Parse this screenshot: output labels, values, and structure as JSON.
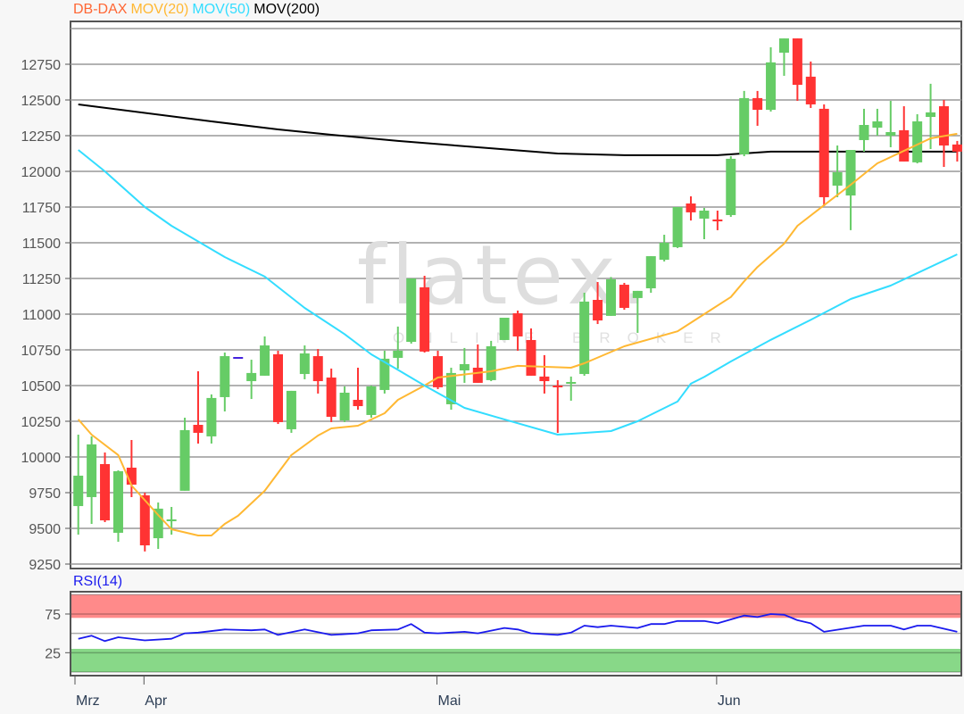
{
  "legend": {
    "instrument": "DB-DAX",
    "ma20": "MOV(20)",
    "ma50": "MOV(50)",
    "ma200": "MOV(200)"
  },
  "rsi_label": "RSI(14)",
  "watermark": {
    "logo": "flatex.",
    "tagline": "ONLINE BROKER"
  },
  "colors": {
    "up": "#66cc66",
    "down": "#ff3333",
    "unchanged": "#4422dd",
    "instrument": "#ff6633",
    "ma20": "#ffb833",
    "ma50": "#33ddff",
    "ma200": "#000000",
    "rsi": "#1a1aee",
    "overbought_band": "#ff8a8a",
    "oversold_band": "#88d888"
  },
  "chart_data": [
    {
      "type": "candlestick",
      "title": "DB-DAX",
      "ylim": [
        9250,
        13000
      ],
      "yticks": [
        12750,
        12500,
        12250,
        12000,
        11750,
        11500,
        11250,
        11000,
        10750,
        10500,
        10250,
        10000,
        9750,
        9500,
        9250
      ],
      "xticks": [
        {
          "label": "Mrz",
          "date": "03-25"
        },
        {
          "label": "Apr",
          "date": "04-01"
        },
        {
          "label": "Mai",
          "date": "05-01"
        },
        {
          "label": "Jun",
          "date": "06-01"
        }
      ],
      "grid": true,
      "ohlc_fields": [
        "date",
        "open",
        "high",
        "low",
        "close"
      ],
      "candles": [
        [
          "03-25",
          9656,
          10156,
          9456,
          9869
        ],
        [
          "03-26",
          9719,
          10144,
          9531,
          10088
        ],
        [
          "03-27",
          9950,
          10031,
          9544,
          9556
        ],
        [
          "03-30",
          9469,
          9906,
          9406,
          9900
        ],
        [
          "03-31",
          9925,
          10119,
          9719,
          9806
        ],
        [
          "04-01",
          9731,
          9750,
          9338,
          9381
        ],
        [
          "04-02",
          9431,
          9681,
          9356,
          9638
        ],
        [
          "04-03",
          9550,
          9650,
          9456,
          9563
        ],
        [
          "04-06",
          9763,
          10275,
          9763,
          10188
        ],
        [
          "04-07",
          10225,
          10600,
          10094,
          10169
        ],
        [
          "04-08",
          10144,
          10438,
          10094,
          10413
        ],
        [
          "04-09",
          10419,
          10731,
          10319,
          10706
        ],
        [
          "04-10",
          10700,
          10700,
          10700,
          10700
        ],
        [
          "04-13",
          10531,
          10681,
          10406,
          10588
        ],
        [
          "04-14",
          10569,
          10844,
          10569,
          10781
        ],
        [
          "04-15",
          10719,
          10744,
          10231,
          10244
        ],
        [
          "04-16",
          10194,
          10463,
          10169,
          10463
        ],
        [
          "04-17",
          10581,
          10781,
          10544,
          10725
        ],
        [
          "04-20",
          10706,
          10756,
          10444,
          10531
        ],
        [
          "04-21",
          10556,
          10619,
          10244,
          10281
        ],
        [
          "04-22",
          10256,
          10494,
          10244,
          10450
        ],
        [
          "04-23",
          10400,
          10625,
          10331,
          10356
        ],
        [
          "04-24",
          10294,
          10500,
          10275,
          10494
        ],
        [
          "04-27",
          10469,
          10744,
          10444,
          10688
        ],
        [
          "04-28",
          10694,
          10913,
          10619,
          10744
        ],
        [
          "04-29",
          10806,
          11250,
          10794,
          11250
        ],
        [
          "04-30",
          11188,
          11269,
          10731,
          10738
        ],
        [
          "05-01",
          10706,
          10744,
          10475,
          10488
        ],
        [
          "05-04",
          10369,
          10625,
          10331,
          10588
        ],
        [
          "05-05",
          10606,
          10763,
          10519,
          10650
        ],
        [
          "05-06",
          10625,
          10788,
          10519,
          10519
        ],
        [
          "05-07",
          10538,
          10813,
          10531,
          10775
        ],
        [
          "05-08",
          10819,
          10975,
          10819,
          10975
        ],
        [
          "05-11",
          11006,
          11025,
          10744,
          10844
        ],
        [
          "05-12",
          10819,
          10900,
          10569,
          10569
        ],
        [
          "05-13",
          10563,
          10713,
          10444,
          10531
        ],
        [
          "05-14",
          10500,
          10538,
          10169,
          10494
        ],
        [
          "05-15",
          10513,
          10563,
          10394,
          10525
        ],
        [
          "05-18",
          10581,
          11150,
          10569,
          11088
        ],
        [
          "05-19",
          11100,
          11225,
          10931,
          10956
        ],
        [
          "05-20",
          10988,
          11260,
          10988,
          11244
        ],
        [
          "05-21",
          11206,
          11219,
          11031,
          11044
        ],
        [
          "05-22",
          11113,
          11163,
          10869,
          11163
        ],
        [
          "05-25",
          11181,
          11406,
          11150,
          11406
        ],
        [
          "05-26",
          11381,
          11556,
          11369,
          11500
        ],
        [
          "05-27",
          11469,
          11750,
          11463,
          11750
        ],
        [
          "05-28",
          11775,
          11825,
          11656,
          11713
        ],
        [
          "05-29",
          11669,
          11744,
          11525,
          11725
        ],
        [
          "06-01",
          11663,
          11725,
          11588,
          11650
        ],
        [
          "06-02",
          11694,
          12106,
          11681,
          12088
        ],
        [
          "06-03",
          12119,
          12563,
          12106,
          12513
        ],
        [
          "06-04",
          12513,
          12563,
          12319,
          12431
        ],
        [
          "06-05",
          12431,
          12869,
          12419,
          12763
        ],
        [
          "06-08",
          12831,
          12931,
          12669,
          12931
        ],
        [
          "06-09",
          12931,
          12931,
          12494,
          12606
        ],
        [
          "06-10",
          12663,
          12769,
          12444,
          12469
        ],
        [
          "06-11",
          12438,
          12469,
          11756,
          11819
        ],
        [
          "06-12",
          11900,
          12181,
          11819,
          11994
        ],
        [
          "06-15",
          11831,
          12150,
          11588,
          12150
        ],
        [
          "06-16",
          12219,
          12438,
          12138,
          12325
        ],
        [
          "06-17",
          12306,
          12438,
          12250,
          12350
        ],
        [
          "06-18",
          12250,
          12494,
          12169,
          12275
        ],
        [
          "06-19",
          12288,
          12456,
          12069,
          12069
        ],
        [
          "06-22",
          12063,
          12400,
          12056,
          12350
        ],
        [
          "06-23",
          12381,
          12613,
          12156,
          12413
        ],
        [
          "06-24",
          12456,
          12500,
          12031,
          12181
        ],
        [
          "06-25",
          12188,
          12213,
          12069,
          12138
        ]
      ],
      "series": [
        {
          "name": "MOV(20)",
          "type": "line",
          "points": [
            [
              "03-25",
              10263
            ],
            [
              "03-26",
              10156
            ],
            [
              "03-30",
              10013
            ],
            [
              "03-31",
              9800
            ],
            [
              "04-02",
              9594
            ],
            [
              "04-03",
              9494
            ],
            [
              "04-07",
              9450
            ],
            [
              "04-08",
              9450
            ],
            [
              "04-09",
              9531
            ],
            [
              "04-10",
              9588
            ],
            [
              "04-14",
              9763
            ],
            [
              "04-16",
              10013
            ],
            [
              "04-20",
              10150
            ],
            [
              "04-21",
              10200
            ],
            [
              "04-23",
              10219
            ],
            [
              "04-27",
              10306
            ],
            [
              "04-28",
              10400
            ],
            [
              "04-30",
              10500
            ],
            [
              "05-01",
              10556
            ],
            [
              "05-07",
              10600
            ],
            [
              "05-11",
              10638
            ],
            [
              "05-15",
              10625
            ],
            [
              "05-18",
              10656
            ],
            [
              "05-21",
              10775
            ],
            [
              "05-27",
              10880
            ],
            [
              "05-29",
              11000
            ],
            [
              "06-02",
              11120
            ],
            [
              "06-03",
              11230
            ],
            [
              "06-04",
              11330
            ],
            [
              "06-08",
              11494
            ],
            [
              "06-09",
              11619
            ],
            [
              "06-11",
              11763
            ],
            [
              "06-15",
              11906
            ],
            [
              "06-17",
              12056
            ],
            [
              "06-23",
              12231
            ],
            [
              "06-25",
              12263
            ]
          ]
        },
        {
          "name": "MOV(50)",
          "type": "line",
          "points": [
            [
              "03-25",
              12150
            ],
            [
              "03-26",
              12075
            ],
            [
              "03-27",
              12000
            ],
            [
              "04-01",
              11750
            ],
            [
              "04-03",
              11619
            ],
            [
              "04-09",
              11400
            ],
            [
              "04-14",
              11263
            ],
            [
              "04-17",
              11044
            ],
            [
              "04-22",
              10860
            ],
            [
              "04-24",
              10719
            ],
            [
              "04-28",
              10610
            ],
            [
              "04-30",
              10500
            ],
            [
              "05-05",
              10344
            ],
            [
              "05-08",
              10263
            ],
            [
              "05-14",
              10156
            ],
            [
              "05-20",
              10181
            ],
            [
              "05-22",
              10250
            ],
            [
              "05-27",
              10388
            ],
            [
              "05-28",
              10513
            ],
            [
              "05-29",
              10560
            ],
            [
              "06-02",
              10669
            ],
            [
              "06-05",
              10820
            ],
            [
              "06-10",
              10960
            ],
            [
              "06-15",
              11106
            ],
            [
              "06-18",
              11200
            ],
            [
              "06-25",
              11419
            ]
          ]
        },
        {
          "name": "MOV(200)",
          "type": "line",
          "points": [
            [
              "03-25",
              12469
            ],
            [
              "04-08",
              12350
            ],
            [
              "04-15",
              12294
            ],
            [
              "04-21",
              12256
            ],
            [
              "04-28",
              12213
            ],
            [
              "05-06",
              12169
            ],
            [
              "05-14",
              12125
            ],
            [
              "05-21",
              12113
            ],
            [
              "06-01",
              12113
            ],
            [
              "06-05",
              12138
            ],
            [
              "06-25",
              12138
            ]
          ]
        }
      ]
    },
    {
      "type": "line",
      "title": "RSI(14)",
      "ylim": [
        0,
        100
      ],
      "yticks": [
        75,
        25
      ],
      "bands": [
        {
          "from": 70,
          "to": 100,
          "color": "#ff8a8a"
        },
        {
          "from": 0,
          "to": 30,
          "color": "#88d888"
        }
      ],
      "reference_line": 50,
      "series": [
        {
          "name": "RSI(14)",
          "points": [
            [
              "03-25",
              43
            ],
            [
              "03-26",
              47
            ],
            [
              "03-27",
              40
            ],
            [
              "03-30",
              45
            ],
            [
              "04-01",
              41
            ],
            [
              "04-03",
              43
            ],
            [
              "04-06",
              50
            ],
            [
              "04-07",
              51
            ],
            [
              "04-09",
              55
            ],
            [
              "04-13",
              54
            ],
            [
              "04-14",
              55
            ],
            [
              "04-15",
              48
            ],
            [
              "04-17",
              55
            ],
            [
              "04-21",
              48
            ],
            [
              "04-23",
              50
            ],
            [
              "04-24",
              54
            ],
            [
              "04-28",
              55
            ],
            [
              "04-29",
              62
            ],
            [
              "04-30",
              51
            ],
            [
              "05-01",
              50
            ],
            [
              "05-05",
              52
            ],
            [
              "05-06",
              50
            ],
            [
              "05-08",
              57
            ],
            [
              "05-11",
              55
            ],
            [
              "05-12",
              50
            ],
            [
              "05-14",
              48
            ],
            [
              "05-15",
              51
            ],
            [
              "05-18",
              60
            ],
            [
              "05-19",
              58
            ],
            [
              "05-20",
              60
            ],
            [
              "05-22",
              57
            ],
            [
              "05-25",
              62
            ],
            [
              "05-26",
              62
            ],
            [
              "05-27",
              66
            ],
            [
              "05-29",
              66
            ],
            [
              "06-01",
              63
            ],
            [
              "06-03",
              73
            ],
            [
              "06-04",
              71
            ],
            [
              "06-05",
              75
            ],
            [
              "06-08",
              74
            ],
            [
              "06-09",
              67
            ],
            [
              "06-10",
              63
            ],
            [
              "06-11",
              52
            ],
            [
              "06-16",
              60
            ],
            [
              "06-18",
              60
            ],
            [
              "06-19",
              55
            ],
            [
              "06-22",
              60
            ],
            [
              "06-23",
              60
            ],
            [
              "06-25",
              52
            ]
          ]
        }
      ]
    }
  ]
}
